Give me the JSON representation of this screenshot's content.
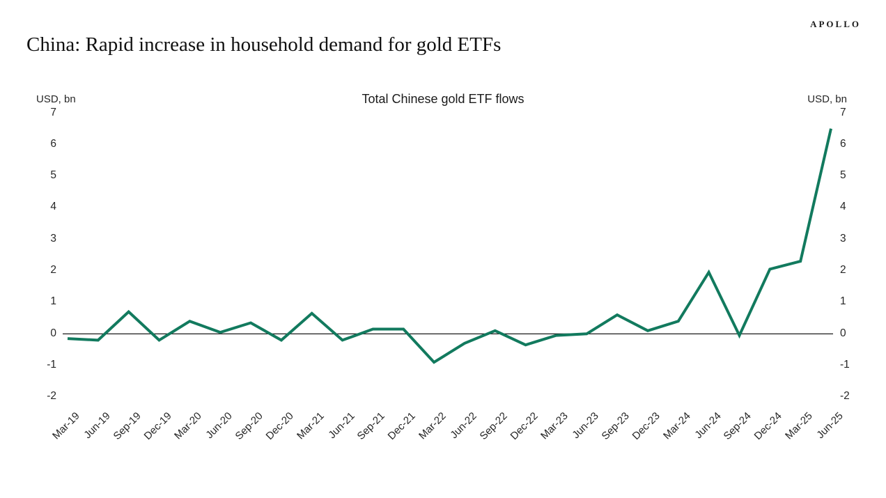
{
  "brand": {
    "logo_text": "APOLLO"
  },
  "page_title": "China: Rapid increase in household demand for gold ETFs",
  "chart_data": {
    "type": "line",
    "title": "Total Chinese gold ETF flows",
    "y_axis_label_left": "USD, bn",
    "y_axis_label_right": "USD, bn",
    "categories": [
      "Mar-19",
      "Jun-19",
      "Sep-19",
      "Dec-19",
      "Mar-20",
      "Jun-20",
      "Sep-20",
      "Dec-20",
      "Mar-21",
      "Jun-21",
      "Sep-21",
      "Dec-21",
      "Mar-22",
      "Jun-22",
      "Sep-22",
      "Dec-22",
      "Mar-23",
      "Jun-23",
      "Sep-23",
      "Dec-23",
      "Mar-24",
      "Jun-24",
      "Sep-24",
      "Dec-24",
      "Mar-25",
      "Jun-25"
    ],
    "series": [
      {
        "name": "Total Chinese gold ETF flows",
        "values": [
          -0.15,
          -0.2,
          0.7,
          -0.2,
          0.4,
          0.05,
          0.35,
          -0.2,
          0.65,
          -0.2,
          0.15,
          0.15,
          -0.9,
          -0.3,
          0.1,
          -0.35,
          -0.05,
          0.0,
          0.6,
          0.1,
          0.4,
          1.95,
          -0.05,
          2.05,
          2.3,
          6.5
        ]
      }
    ],
    "ylim": [
      -2,
      7
    ],
    "y_ticks": [
      7,
      6,
      5,
      4,
      3,
      2,
      1,
      0,
      -1,
      -2
    ],
    "grid": "off",
    "legend": "none",
    "line_color": "#127a5e",
    "axis_line_color": "#000000",
    "text_color": "#262626"
  }
}
